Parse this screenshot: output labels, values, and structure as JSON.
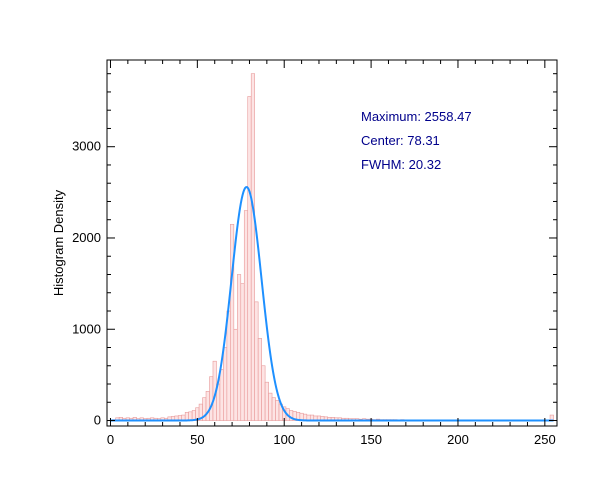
{
  "chart_data": {
    "type": "bar",
    "title": "",
    "xlabel": "",
    "ylabel": "Histogram Density",
    "xlim": [
      -2,
      257
    ],
    "ylim": [
      -60,
      3950
    ],
    "x_ticks": [
      0,
      50,
      100,
      150,
      200,
      250
    ],
    "y_ticks": [
      0,
      1000,
      2000,
      3000
    ],
    "grid": false,
    "bin_width": 2,
    "bins": [
      [
        2,
        10
      ],
      [
        4,
        30
      ],
      [
        6,
        35
      ],
      [
        8,
        25
      ],
      [
        10,
        30
      ],
      [
        12,
        25
      ],
      [
        14,
        35
      ],
      [
        16,
        20
      ],
      [
        18,
        30
      ],
      [
        20,
        20
      ],
      [
        22,
        25
      ],
      [
        24,
        30
      ],
      [
        26,
        25
      ],
      [
        28,
        20
      ],
      [
        30,
        30
      ],
      [
        32,
        25
      ],
      [
        34,
        40
      ],
      [
        36,
        45
      ],
      [
        38,
        50
      ],
      [
        40,
        55
      ],
      [
        42,
        60
      ],
      [
        44,
        90
      ],
      [
        46,
        95
      ],
      [
        48,
        110
      ],
      [
        50,
        140
      ],
      [
        52,
        180
      ],
      [
        54,
        250
      ],
      [
        56,
        320
      ],
      [
        58,
        480
      ],
      [
        60,
        650
      ],
      [
        62,
        400
      ],
      [
        64,
        560
      ],
      [
        66,
        800
      ],
      [
        68,
        1200
      ],
      [
        70,
        2150
      ],
      [
        72,
        1000
      ],
      [
        74,
        1600
      ],
      [
        76,
        1500
      ],
      [
        78,
        2300
      ],
      [
        80,
        3550
      ],
      [
        82,
        3800
      ],
      [
        84,
        1300
      ],
      [
        86,
        900
      ],
      [
        88,
        600
      ],
      [
        90,
        420
      ],
      [
        92,
        300
      ],
      [
        94,
        250
      ],
      [
        96,
        220
      ],
      [
        98,
        180
      ],
      [
        100,
        150
      ],
      [
        102,
        130
      ],
      [
        104,
        110
      ],
      [
        106,
        100
      ],
      [
        108,
        90
      ],
      [
        110,
        80
      ],
      [
        112,
        70
      ],
      [
        114,
        60
      ],
      [
        116,
        60
      ],
      [
        118,
        50
      ],
      [
        120,
        50
      ],
      [
        122,
        45
      ],
      [
        124,
        40
      ],
      [
        126,
        35
      ],
      [
        128,
        35
      ],
      [
        130,
        30
      ],
      [
        132,
        30
      ],
      [
        134,
        25
      ],
      [
        136,
        25
      ],
      [
        138,
        20
      ],
      [
        140,
        20
      ],
      [
        142,
        20
      ],
      [
        144,
        15
      ],
      [
        146,
        20
      ],
      [
        148,
        15
      ],
      [
        150,
        15
      ],
      [
        152,
        10
      ],
      [
        154,
        15
      ],
      [
        156,
        10
      ],
      [
        158,
        10
      ],
      [
        160,
        10
      ],
      [
        162,
        10
      ],
      [
        164,
        10
      ],
      [
        166,
        5
      ],
      [
        168,
        10
      ],
      [
        170,
        5
      ],
      [
        172,
        5
      ],
      [
        174,
        5
      ],
      [
        176,
        5
      ],
      [
        178,
        5
      ],
      [
        180,
        5
      ],
      [
        182,
        5
      ],
      [
        184,
        5
      ],
      [
        186,
        5
      ],
      [
        188,
        5
      ],
      [
        190,
        5
      ],
      [
        192,
        5
      ],
      [
        194,
        5
      ],
      [
        196,
        5
      ],
      [
        198,
        5
      ],
      [
        200,
        5
      ],
      [
        202,
        5
      ],
      [
        204,
        5
      ],
      [
        206,
        5
      ],
      [
        208,
        5
      ],
      [
        210,
        5
      ],
      [
        212,
        5
      ],
      [
        214,
        5
      ],
      [
        216,
        5
      ],
      [
        218,
        5
      ],
      [
        220,
        5
      ],
      [
        222,
        5
      ],
      [
        224,
        5
      ],
      [
        226,
        5
      ],
      [
        228,
        5
      ],
      [
        230,
        5
      ],
      [
        232,
        5
      ],
      [
        234,
        5
      ],
      [
        236,
        5
      ],
      [
        238,
        5
      ],
      [
        240,
        5
      ],
      [
        242,
        5
      ],
      [
        244,
        5
      ],
      [
        246,
        5
      ],
      [
        248,
        5
      ],
      [
        250,
        5
      ],
      [
        252,
        5
      ],
      [
        254,
        60
      ]
    ],
    "fit": {
      "amplitude": 2558.47,
      "center": 78.31,
      "fwhm": 20.32,
      "color": "#1e90ff"
    },
    "annotations": [
      "Maximum: 2558.47",
      "Center: 78.31",
      "FWHM: 20.32"
    ],
    "colors": {
      "bar_fill": "#fde4e4",
      "bar_stroke": "#e89a9a",
      "fit_line": "#1e90ff",
      "annotation": "#00008b"
    }
  }
}
